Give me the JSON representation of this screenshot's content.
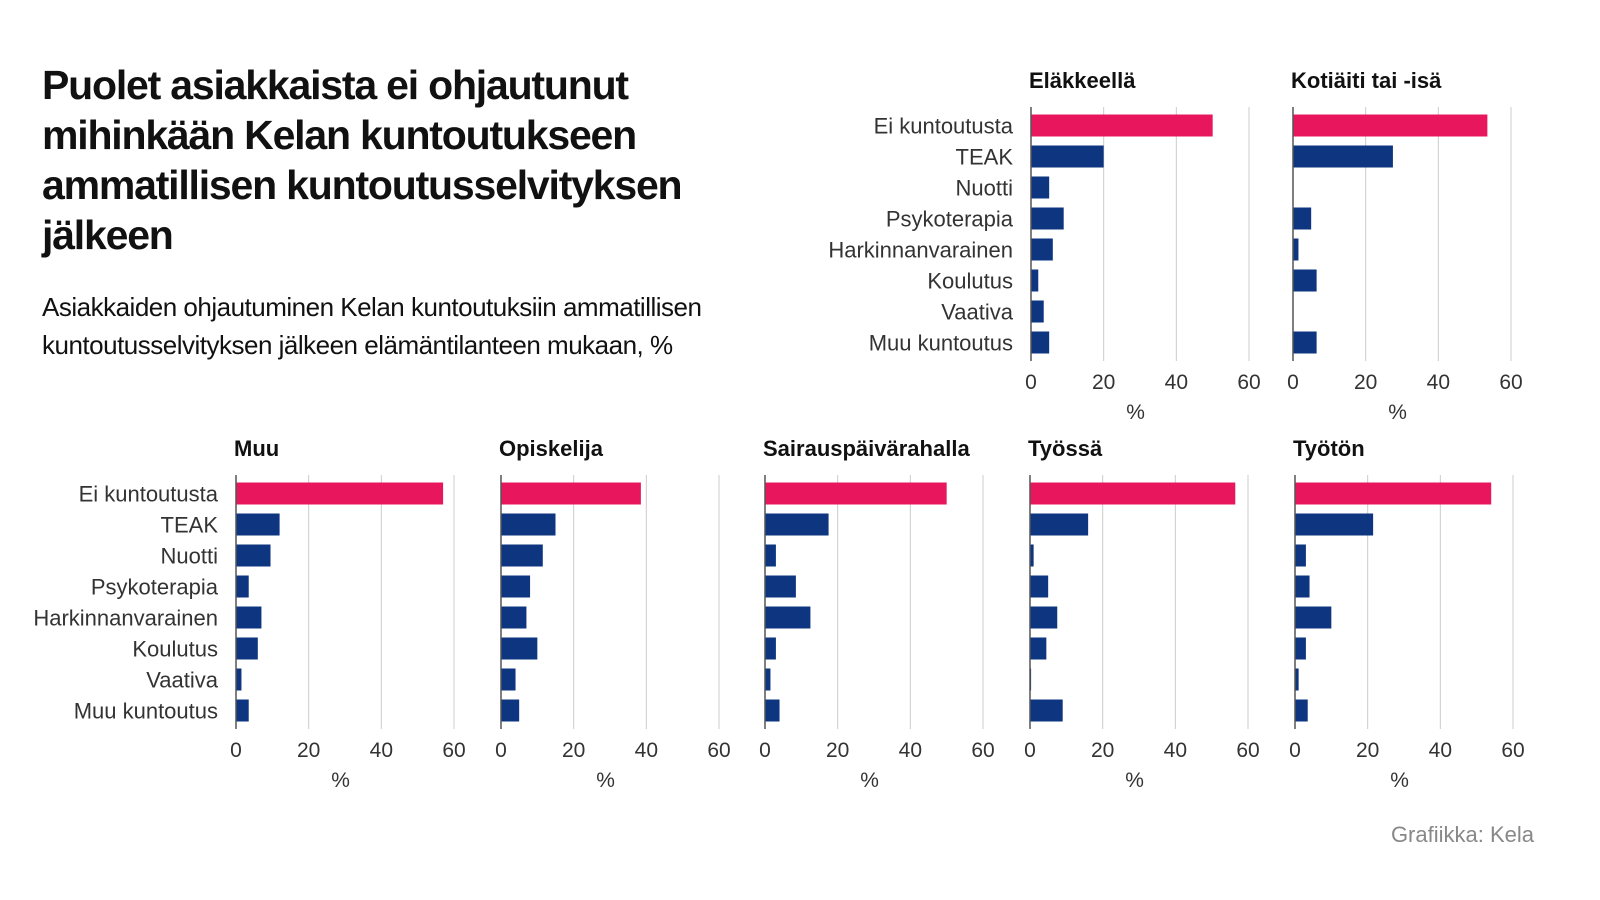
{
  "header": {
    "title": "Puolet asiakkaista ei ohjautunut mihinkään Kelan kuntoutukseen ammatillisen kuntoutusselvityksen jälkeen",
    "subtitle": "Asiakkaiden ohjautuminen Kelan kuntoutuksiin ammatillisen kuntoutusselvityksen jälkeen elämäntilanteen mukaan, %"
  },
  "footer": {
    "credit": "Grafiikka: Kela"
  },
  "colors": {
    "highlight": "#e8175d",
    "bar": "#0d3580",
    "grid": "#cccccc",
    "axis": "#555555"
  },
  "chart_data": {
    "type": "bar",
    "orientation": "horizontal",
    "categories": [
      "Ei kuntoutusta",
      "TEAK",
      "Nuotti",
      "Psykoterapia",
      "Harkinnanvarainen",
      "Koulutus",
      "Vaativa",
      "Muu kuntoutus"
    ],
    "highlight_category": "Ei kuntoutusta",
    "xlim": [
      0,
      60
    ],
    "xticks": [
      "0",
      "20",
      "40",
      "60"
    ],
    "xlabel": "%",
    "panels": [
      {
        "name": "Eläkkeellä",
        "values": [
          50,
          20,
          5,
          9,
          6,
          2,
          3.5,
          5
        ]
      },
      {
        "name": "Kotiäiti tai -isä",
        "values": [
          53.5,
          27.5,
          0,
          5,
          1.5,
          6.5,
          0,
          6.5
        ]
      },
      {
        "name": "Muu",
        "values": [
          57,
          12,
          9.5,
          3.5,
          7,
          6,
          1.5,
          3.5
        ]
      },
      {
        "name": "Opiskelija",
        "values": [
          38.5,
          15,
          11.5,
          8,
          7,
          10,
          4,
          5
        ]
      },
      {
        "name": "Sairauspäivärahalla",
        "values": [
          50,
          17.5,
          3,
          8.5,
          12.5,
          3,
          1.5,
          4
        ]
      },
      {
        "name": "Työssä",
        "values": [
          56.5,
          16,
          1,
          5,
          7.5,
          4.5,
          0.3,
          9
        ]
      },
      {
        "name": "Työtön",
        "values": [
          54,
          21.5,
          3,
          4,
          10,
          3,
          1,
          3.5
        ]
      }
    ]
  }
}
